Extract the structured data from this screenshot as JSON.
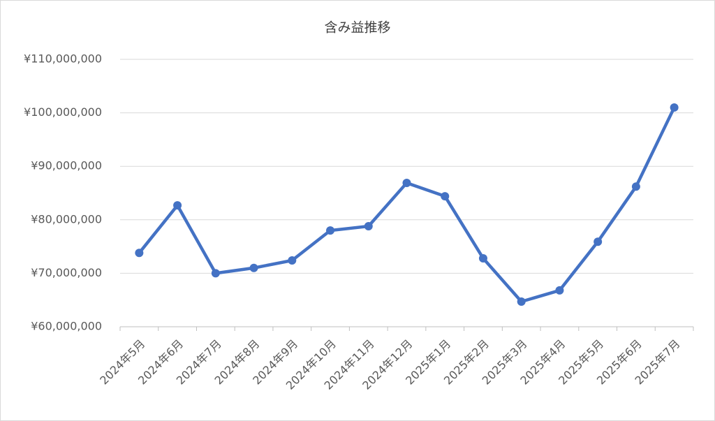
{
  "chart_data": {
    "type": "line",
    "title": "含み益推移",
    "categories": [
      "2024年5月",
      "2024年6月",
      "2024年7月",
      "2024年8月",
      "2024年9月",
      "2024年10月",
      "2024年11月",
      "2024年12月",
      "2025年1月",
      "2025年2月",
      "2025年3月",
      "2025年4月",
      "2025年5月",
      "2025年6月",
      "2025年7月"
    ],
    "series": [
      {
        "color": "#4472c4",
        "values": [
          73800000,
          82700000,
          70000000,
          71000000,
          72400000,
          78000000,
          78800000,
          86900000,
          84400000,
          72800000,
          64700000,
          66800000,
          75900000,
          86200000,
          101000000
        ]
      }
    ],
    "ylim": [
      60000000,
      110000000
    ],
    "yticks": [
      {
        "value": 60000000,
        "label": "¥60,000,000"
      },
      {
        "value": 70000000,
        "label": "¥70,000,000"
      },
      {
        "value": 80000000,
        "label": "¥80,000,000"
      },
      {
        "value": 90000000,
        "label": "¥90,000,000"
      },
      {
        "value": 100000000,
        "label": "¥100,000,000"
      },
      {
        "value": 110000000,
        "label": "¥110,000,000"
      }
    ],
    "grid": true
  }
}
